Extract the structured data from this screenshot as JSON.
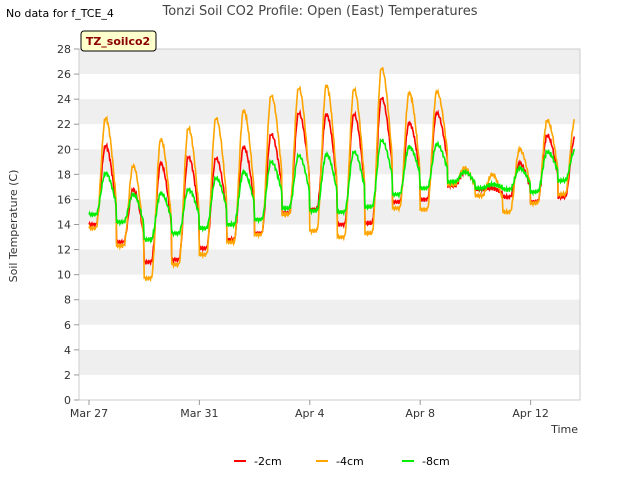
{
  "chart_data": {
    "type": "line",
    "title": "Tonzi Soil CO2 Profile: Open (East) Temperatures",
    "note": "No data for f_TCE_4",
    "badge": "TZ_soilco2",
    "xlabel": "Time",
    "ylabel": "Soil Temperature (C)",
    "x_unit": "days since Mar 27",
    "xlim": [
      0,
      45
    ],
    "ylim": [
      0,
      28
    ],
    "yticks": [
      "0",
      "2",
      "4",
      "6",
      "8",
      "10",
      "12",
      "14",
      "16",
      "18",
      "20",
      "22",
      "24",
      "26",
      "28"
    ],
    "xticks": [
      {
        "label": "Mar 27",
        "day": 0
      },
      {
        "label": "Mar 31",
        "day": 4
      },
      {
        "label": "Apr 4",
        "day": 8
      },
      {
        "label": "Apr 8",
        "day": 12
      },
      {
        "label": "Apr 12",
        "day": 16
      }
    ],
    "grid": "horizontal bands",
    "legend_position": "bottom-center",
    "series": [
      {
        "name": "-2cm",
        "color": "#ff0000",
        "daily": [
          {
            "day": 0,
            "min": 14.0,
            "max": 20.3
          },
          {
            "day": 1,
            "min": 12.6,
            "max": 16.8
          },
          {
            "day": 2,
            "min": 11.0,
            "max": 18.9
          },
          {
            "day": 3,
            "min": 11.2,
            "max": 19.4
          },
          {
            "day": 4,
            "min": 12.1,
            "max": 19.3
          },
          {
            "day": 5,
            "min": 12.8,
            "max": 20.2
          },
          {
            "day": 6,
            "min": 13.3,
            "max": 21.2
          },
          {
            "day": 7,
            "min": 14.9,
            "max": 22.9
          },
          {
            "day": 8,
            "min": 15.2,
            "max": 22.8
          },
          {
            "day": 9,
            "min": 14.0,
            "max": 22.8
          },
          {
            "day": 10,
            "min": 14.1,
            "max": 24.1
          },
          {
            "day": 11,
            "min": 15.8,
            "max": 22.1
          },
          {
            "day": 12,
            "min": 16.0,
            "max": 22.9
          },
          {
            "day": 13,
            "min": 17.1,
            "max": 18.2
          },
          {
            "day": 14,
            "min": 16.8,
            "max": 16.9
          },
          {
            "day": 15,
            "min": 16.2,
            "max": 18.9
          },
          {
            "day": 16,
            "min": 15.8,
            "max": 21.1
          },
          {
            "day": 17,
            "min": 16.2,
            "max": 20.9
          }
        ]
      },
      {
        "name": "-4cm",
        "color": "#ffa500",
        "daily": [
          {
            "day": 0,
            "min": 13.7,
            "max": 22.5
          },
          {
            "day": 1,
            "min": 12.3,
            "max": 18.7
          },
          {
            "day": 2,
            "min": 9.7,
            "max": 20.8
          },
          {
            "day": 3,
            "min": 10.8,
            "max": 21.7
          },
          {
            "day": 4,
            "min": 11.6,
            "max": 22.5
          },
          {
            "day": 5,
            "min": 12.6,
            "max": 23.1
          },
          {
            "day": 6,
            "min": 13.2,
            "max": 24.3
          },
          {
            "day": 7,
            "min": 14.8,
            "max": 24.9
          },
          {
            "day": 8,
            "min": 13.5,
            "max": 25.1
          },
          {
            "day": 9,
            "min": 13.0,
            "max": 24.8
          },
          {
            "day": 10,
            "min": 13.3,
            "max": 26.5
          },
          {
            "day": 11,
            "min": 15.3,
            "max": 24.5
          },
          {
            "day": 12,
            "min": 15.2,
            "max": 24.6
          },
          {
            "day": 13,
            "min": 17.2,
            "max": 18.5
          },
          {
            "day": 14,
            "min": 16.3,
            "max": 18.0
          },
          {
            "day": 15,
            "min": 15.0,
            "max": 20.0
          },
          {
            "day": 16,
            "min": 15.7,
            "max": 22.3
          },
          {
            "day": 17,
            "min": 16.4,
            "max": 22.3
          }
        ]
      },
      {
        "name": "-8cm",
        "color": "#00ee00",
        "daily": [
          {
            "day": 0,
            "min": 14.8,
            "max": 18.1
          },
          {
            "day": 1,
            "min": 14.2,
            "max": 16.4
          },
          {
            "day": 2,
            "min": 12.8,
            "max": 16.5
          },
          {
            "day": 3,
            "min": 13.3,
            "max": 16.8
          },
          {
            "day": 4,
            "min": 13.7,
            "max": 17.7
          },
          {
            "day": 5,
            "min": 14.0,
            "max": 18.2
          },
          {
            "day": 6,
            "min": 14.4,
            "max": 19.0
          },
          {
            "day": 7,
            "min": 15.3,
            "max": 19.5
          },
          {
            "day": 8,
            "min": 15.1,
            "max": 19.6
          },
          {
            "day": 9,
            "min": 15.0,
            "max": 19.8
          },
          {
            "day": 10,
            "min": 15.4,
            "max": 20.7
          },
          {
            "day": 11,
            "min": 16.4,
            "max": 20.2
          },
          {
            "day": 12,
            "min": 16.9,
            "max": 20.4
          },
          {
            "day": 13,
            "min": 17.4,
            "max": 18.2
          },
          {
            "day": 14,
            "min": 16.9,
            "max": 17.2
          },
          {
            "day": 15,
            "min": 16.8,
            "max": 18.5
          },
          {
            "day": 16,
            "min": 16.6,
            "max": 19.8
          },
          {
            "day": 17,
            "min": 17.5,
            "max": 19.9
          }
        ]
      }
    ]
  }
}
